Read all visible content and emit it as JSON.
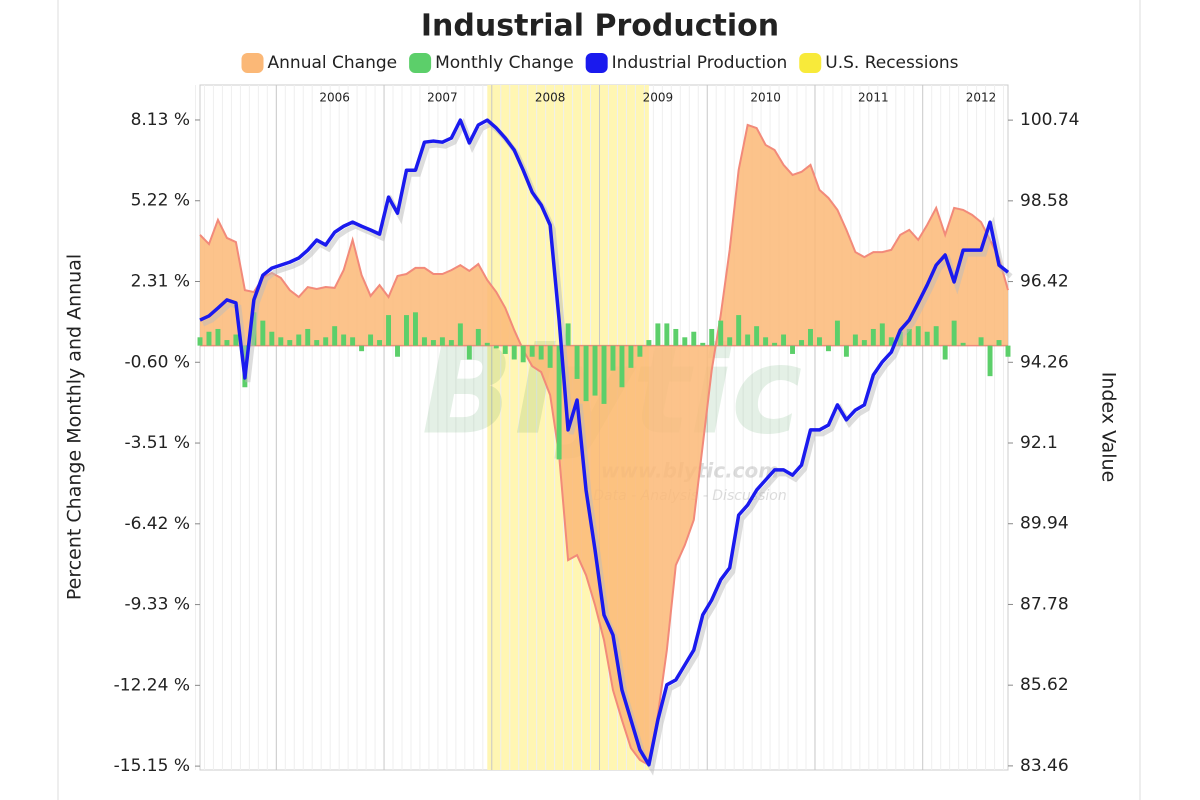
{
  "chart_data": {
    "type": "combo",
    "title": "Industrial Production",
    "y_label": "Percent Change Monthly and Annual",
    "y2_label": "Index Value",
    "watermark": "Blytic",
    "watermark_url": "www.blytic.com",
    "watermark_tagline": "Data - Analysis - Discussion",
    "categories": [
      null,
      null,
      null,
      null,
      null,
      null,
      null,
      null,
      null,
      null,
      null,
      null,
      null,
      null,
      null,
      "2006",
      null,
      null,
      null,
      null,
      null,
      null,
      null,
      null,
      null,
      null,
      null,
      "2007",
      null,
      null,
      null,
      null,
      null,
      null,
      null,
      null,
      null,
      null,
      null,
      "2008",
      null,
      null,
      null,
      null,
      null,
      null,
      null,
      null,
      null,
      null,
      null,
      "2009",
      null,
      null,
      null,
      null,
      null,
      null,
      null,
      null,
      null,
      null,
      null,
      "2010",
      null,
      null,
      null,
      null,
      null,
      null,
      null,
      null,
      null,
      null,
      null,
      "2011",
      null,
      null,
      null,
      null,
      null,
      null,
      null,
      null,
      null,
      null,
      null,
      "2012",
      null,
      null,
      null
    ],
    "series": [
      {
        "name": "Annual Change",
        "type": "area",
        "color": "#fbb877",
        "values": [
          3.99,
          3.66,
          4.53,
          3.88,
          3.73,
          2.0,
          1.93,
          2.44,
          2.62,
          2.44,
          2.0,
          1.75,
          2.11,
          2.04,
          2.11,
          2.08,
          2.72,
          3.81,
          2.54,
          1.79,
          2.18,
          1.75,
          2.51,
          2.58,
          2.8,
          2.8,
          2.58,
          2.58,
          2.72,
          2.9,
          2.69,
          2.94,
          2.36,
          1.93,
          1.36,
          0.56,
          -0.16,
          -0.74,
          -0.95,
          -1.78,
          -3.94,
          -7.73,
          -7.55,
          -8.27,
          -9.35,
          -10.61,
          -12.41,
          -13.49,
          -14.5,
          -14.93,
          -15.11,
          -13.31,
          -10.97,
          -7.91,
          -7.19,
          -6.28,
          -3.58,
          -0.88,
          1.1,
          3.45,
          6.33,
          7.95,
          7.84,
          7.23,
          7.05,
          6.51,
          6.15,
          6.26,
          6.51,
          5.61,
          5.32,
          4.89,
          4.17,
          3.37,
          3.19,
          3.37,
          3.37,
          3.45,
          3.99,
          4.17,
          3.81,
          4.35,
          4.96,
          3.99,
          4.96,
          4.89,
          4.71,
          4.45,
          3.81,
          3.16,
          2.0
        ]
      },
      {
        "name": "Monthly Change",
        "type": "bar",
        "color": "#5ccf6a",
        "values": [
          0.3,
          0.5,
          0.6,
          0.2,
          0.4,
          -1.5,
          1.2,
          0.9,
          0.5,
          0.3,
          0.2,
          0.4,
          0.6,
          0.2,
          0.3,
          0.7,
          0.4,
          0.3,
          -0.2,
          0.4,
          0.2,
          1.1,
          -0.4,
          1.1,
          1.2,
          0.3,
          0.2,
          0.3,
          0.2,
          0.8,
          -0.5,
          0.6,
          0.1,
          -0.1,
          -0.3,
          -0.5,
          -0.6,
          -0.4,
          -0.5,
          -0.8,
          -4.1,
          0.8,
          -1.2,
          -2.0,
          -1.8,
          -2.1,
          -0.9,
          -1.5,
          -0.8,
          -0.4,
          0.2,
          0.8,
          0.8,
          0.6,
          0.3,
          0.5,
          0.1,
          0.6,
          0.9,
          0.3,
          1.1,
          0.4,
          0.7,
          0.3,
          0.1,
          0.4,
          -0.3,
          0.2,
          0.6,
          0.3,
          -0.2,
          0.9,
          -0.4,
          0.4,
          0.2,
          0.6,
          0.8,
          0.3,
          0.5,
          0.6,
          0.7,
          0.5,
          0.7,
          -0.5,
          0.9,
          0.1,
          0.0,
          0.3,
          -1.1,
          0.2,
          -0.4
        ]
      },
      {
        "name": "Industrial Production",
        "type": "line",
        "axis": "y2",
        "color": "#1a1aee",
        "values": [
          95.39,
          95.5,
          95.71,
          95.93,
          95.85,
          93.84,
          95.93,
          96.59,
          96.78,
          96.86,
          96.94,
          97.05,
          97.26,
          97.53,
          97.4,
          97.74,
          97.9,
          98.01,
          97.9,
          97.8,
          97.69,
          98.68,
          98.25,
          99.4,
          99.4,
          100.15,
          100.18,
          100.15,
          100.26,
          100.74,
          100.13,
          100.61,
          100.74,
          100.53,
          100.26,
          99.94,
          99.4,
          98.81,
          98.47,
          97.93,
          95.39,
          92.45,
          93.25,
          90.84,
          89.24,
          87.5,
          86.96,
          85.49,
          84.69,
          83.89,
          83.49,
          84.69,
          85.63,
          85.76,
          86.16,
          86.56,
          87.5,
          87.9,
          88.44,
          88.76,
          90.17,
          90.44,
          90.84,
          91.11,
          91.38,
          91.38,
          91.24,
          91.51,
          92.45,
          92.45,
          92.58,
          93.12,
          92.72,
          92.98,
          93.12,
          93.92,
          94.27,
          94.53,
          95.12,
          95.39,
          95.85,
          96.33,
          96.86,
          97.13,
          96.41,
          97.26,
          97.26,
          97.26,
          98.01,
          96.86,
          96.67
        ]
      }
    ],
    "recessions": {
      "name": "U.S. Recessions",
      "color": "#fff6b3",
      "swatch": "#f8ea3a",
      "ranges": [
        [
          32,
          50
        ]
      ]
    },
    "ylim": [
      -15.29,
      9.39
    ],
    "yticks": [
      {
        "value": 8.13,
        "label": "8.13 %"
      },
      {
        "value": 5.22,
        "label": "5.22 %"
      },
      {
        "value": 2.31,
        "label": "2.31 %"
      },
      {
        "value": -0.6,
        "label": "-0.60 %"
      },
      {
        "value": -3.51,
        "label": "-3.51 %"
      },
      {
        "value": -6.42,
        "label": "-6.42 %"
      },
      {
        "value": -9.33,
        "label": "-9.33 %"
      },
      {
        "value": -12.24,
        "label": "-12.24 %"
      },
      {
        "value": -15.15,
        "label": "-15.15 %"
      }
    ],
    "y2lim": [
      83.35,
      101.68
    ],
    "y2ticks": [
      100.74,
      98.58,
      96.42,
      94.26,
      92.1,
      89.94,
      87.78,
      85.62,
      83.46
    ],
    "legend": "top"
  }
}
